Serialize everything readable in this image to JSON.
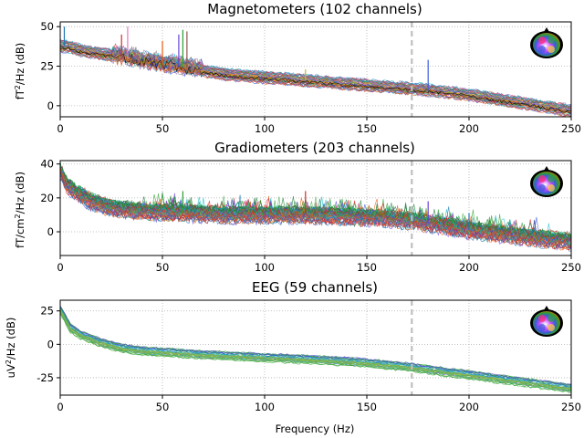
{
  "chart_data": [
    {
      "type": "line",
      "title": "Magnetometers (102 channels)",
      "ylabel": "fT²/Hz (dB)",
      "xlabel": "",
      "xlim": [
        0,
        250
      ],
      "ylim": [
        -7,
        53
      ],
      "xticks": [
        0,
        50,
        100,
        150,
        200,
        250
      ],
      "yticks": [
        0,
        25,
        50
      ],
      "grid": true,
      "vline_x": 172,
      "n_channels": 102,
      "envelope": {
        "x": [
          0,
          5,
          10,
          20,
          30,
          40,
          50,
          60,
          70,
          80,
          90,
          100,
          120,
          140,
          160,
          180,
          200,
          220,
          240,
          250
        ],
        "y": [
          38,
          37,
          35,
          33,
          31,
          28,
          26,
          24,
          22,
          20,
          19,
          18,
          16,
          14,
          12,
          10,
          7,
          3,
          -1,
          -3
        ]
      },
      "peaks": [
        {
          "x": 2,
          "y": 50
        },
        {
          "x": 30,
          "y": 45
        },
        {
          "x": 33,
          "y": 50
        },
        {
          "x": 37,
          "y": 37
        },
        {
          "x": 50,
          "y": 41
        },
        {
          "x": 58,
          "y": 45
        },
        {
          "x": 60,
          "y": 48
        },
        {
          "x": 62,
          "y": 47
        },
        {
          "x": 120,
          "y": 23
        },
        {
          "x": 180,
          "y": 29
        }
      ],
      "sensor_map": "colored-circle-sensor-map"
    },
    {
      "type": "line",
      "title": "Gradiometers (203 channels)",
      "ylabel": "fT/cm²/Hz (dB)",
      "xlabel": "",
      "xlim": [
        0,
        250
      ],
      "ylim": [
        -14,
        42
      ],
      "xticks": [
        0,
        50,
        100,
        150,
        200,
        250
      ],
      "yticks": [
        0,
        20,
        40
      ],
      "grid": true,
      "vline_x": 172,
      "n_channels": 203,
      "envelope": {
        "x": [
          0,
          3,
          8,
          15,
          25,
          40,
          60,
          80,
          100,
          120,
          140,
          160,
          180,
          200,
          220,
          250
        ],
        "y": [
          36,
          28,
          23,
          18,
          14,
          12,
          11,
          10,
          10,
          10,
          9,
          8,
          5,
          1,
          -2,
          -6
        ]
      },
      "peaks": [
        {
          "x": 60,
          "y": 24
        },
        {
          "x": 120,
          "y": 24
        },
        {
          "x": 180,
          "y": 18
        },
        {
          "x": 200,
          "y": 11
        }
      ],
      "sensor_map": "colored-circle-sensor-map"
    },
    {
      "type": "line",
      "title": "EEG (59 channels)",
      "ylabel": "uV²/Hz (dB)",
      "xlabel": "Frequency (Hz)",
      "xlim": [
        0,
        250
      ],
      "ylim": [
        -38,
        33
      ],
      "xticks": [
        0,
        50,
        100,
        150,
        200,
        250
      ],
      "yticks": [
        -25,
        0,
        25
      ],
      "grid": true,
      "vline_x": 172,
      "n_channels": 59,
      "envelope": {
        "x": [
          0,
          5,
          10,
          20,
          30,
          40,
          50,
          70,
          100,
          130,
          150,
          170,
          180,
          200,
          220,
          250
        ],
        "y": [
          26,
          12,
          7,
          1,
          -3,
          -5,
          -6,
          -8,
          -10,
          -12,
          -14,
          -17,
          -19,
          -23,
          -27,
          -33
        ]
      },
      "peaks": [
        {
          "x": 7,
          "y": 10
        },
        {
          "x": 9,
          "y": 8
        }
      ],
      "sensor_map": "colored-circle-sensor-map"
    }
  ],
  "colors": {
    "vline": "#bfbfbf",
    "grid": "#b0b0b0",
    "axes": "#000000"
  }
}
